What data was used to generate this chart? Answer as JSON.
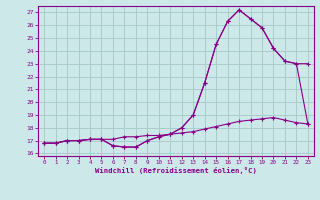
{
  "background_color": "#cce8e8",
  "grid_color": "#aacccc",
  "line_color": "#880088",
  "xlabel": "Windchill (Refroidissement éolien,°C)",
  "ylim": [
    16,
    27.5
  ],
  "xlim": [
    -0.5,
    23.5
  ],
  "yticks": [
    16,
    17,
    18,
    19,
    20,
    21,
    22,
    23,
    24,
    25,
    26,
    27
  ],
  "xticks": [
    0,
    1,
    2,
    3,
    4,
    5,
    6,
    7,
    8,
    9,
    10,
    11,
    12,
    13,
    14,
    15,
    16,
    17,
    18,
    19,
    20,
    21,
    22,
    23
  ],
  "line1_x": [
    0,
    1,
    2,
    3,
    4,
    5,
    6,
    7,
    8,
    9,
    10,
    11,
    12,
    13,
    14,
    15,
    16,
    17,
    18,
    19,
    20,
    21,
    22,
    23
  ],
  "line1_y": [
    16.8,
    16.8,
    17.0,
    17.0,
    17.1,
    17.1,
    16.6,
    16.5,
    16.5,
    17.0,
    17.3,
    17.5,
    18.0,
    19.0,
    21.5,
    24.5,
    26.3,
    27.2,
    26.5,
    25.8,
    24.2,
    23.2,
    23.0,
    23.0
  ],
  "line2_x": [
    0,
    1,
    2,
    3,
    4,
    5,
    6,
    7,
    8,
    9,
    10,
    11,
    12,
    13,
    14,
    15,
    16,
    17,
    18,
    19,
    20,
    21,
    22,
    23
  ],
  "line2_y": [
    16.8,
    16.8,
    17.0,
    17.0,
    17.1,
    17.1,
    16.6,
    16.5,
    16.5,
    17.0,
    17.3,
    17.5,
    18.0,
    19.0,
    21.5,
    24.5,
    26.3,
    27.2,
    26.5,
    25.8,
    24.2,
    23.2,
    23.0,
    18.3
  ],
  "line3_x": [
    0,
    1,
    2,
    3,
    4,
    5,
    6,
    7,
    8,
    9,
    10,
    11,
    12,
    13,
    14,
    15,
    16,
    17,
    18,
    19,
    20,
    21,
    22,
    23
  ],
  "line3_y": [
    16.8,
    16.8,
    17.0,
    17.0,
    17.1,
    17.1,
    17.1,
    17.3,
    17.3,
    17.4,
    17.4,
    17.5,
    17.6,
    17.7,
    17.9,
    18.1,
    18.3,
    18.5,
    18.6,
    18.7,
    18.8,
    18.6,
    18.4,
    18.3
  ]
}
